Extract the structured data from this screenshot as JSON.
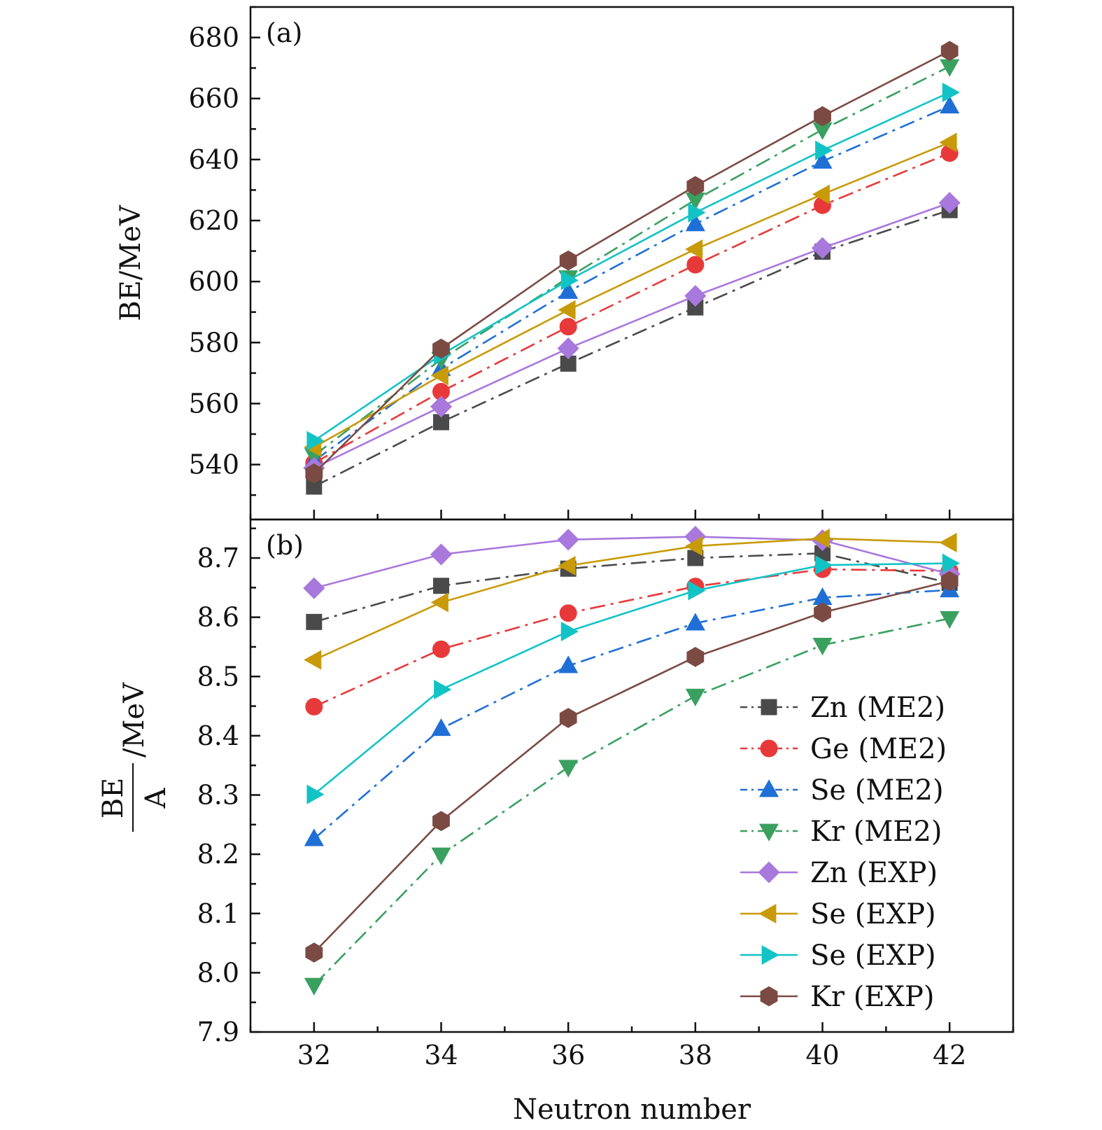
{
  "chart_data": [
    {
      "type": "line",
      "panel_label": "(a)",
      "x": [
        32,
        34,
        36,
        38,
        40,
        42
      ],
      "xlim": [
        31,
        43
      ],
      "xticks": [
        32,
        34,
        36,
        38,
        40,
        42
      ],
      "ylabel": "BE/MeV",
      "ylim": [
        522,
        690
      ],
      "yticks": [
        540,
        560,
        580,
        600,
        620,
        640,
        660,
        680
      ],
      "series": [
        {
          "name": "Zn (ME2)",
          "values": [
            532.8,
            553.9,
            573.1,
            591.5,
            609.8,
            623.4
          ],
          "color": "#4a4a4a",
          "marker": "square",
          "dash": "dashdot"
        },
        {
          "name": "Ge (ME2)",
          "values": [
            540.5,
            563.9,
            585.2,
            605.5,
            625.0,
            642.1
          ],
          "color": "#e8393a",
          "marker": "circle",
          "dash": "dashdot"
        },
        {
          "name": "Se (ME2)",
          "values": [
            541.2,
            571.4,
            596.7,
            618.9,
            639.4,
            657.5
          ],
          "color": "#1f6fd6",
          "marker": "triangle-up",
          "dash": "dashdot"
        },
        {
          "name": "Kr (ME2)",
          "values": [
            543.0,
            574.5,
            601.3,
            626.8,
            649.8,
            670.5
          ],
          "color": "#3aa060",
          "marker": "triangle-down",
          "dash": "dashdot"
        },
        {
          "name": "Zn (EXP)",
          "values": [
            538.9,
            559.0,
            578.1,
            595.3,
            611.0,
            625.8
          ],
          "color": "#a878dc",
          "marker": "diamond",
          "dash": "solid"
        },
        {
          "name": "Se (EXP)",
          "values": [
            545.7,
            569.2,
            590.7,
            610.6,
            628.6,
            645.6
          ],
          "color": "#c89a08",
          "marker": "triangle-left",
          "dash": "solid"
        },
        {
          "name": "Se (EXP)",
          "values": [
            547.8,
            576.0,
            600.4,
            622.6,
            643.0,
            662.0
          ],
          "color": "#12c3c6",
          "marker": "triangle-right",
          "dash": "solid"
        },
        {
          "name": "Kr (EXP)",
          "values": [
            537.1,
            578.0,
            606.9,
            631.3,
            654.2,
            675.6
          ],
          "color": "#7b4b43",
          "marker": "hexagon",
          "dash": "solid"
        }
      ]
    },
    {
      "type": "line",
      "panel_label": "(b)",
      "x": [
        32,
        34,
        36,
        38,
        40,
        42
      ],
      "xlim": [
        31,
        43
      ],
      "xticks": [
        32,
        34,
        36,
        38,
        40,
        42
      ],
      "xlabel": "Neutron number",
      "ylabel_num": "BE",
      "ylabel_den": "A",
      "ylabel_unit": "/MeV",
      "ylim": [
        7.9,
        8.765
      ],
      "yticks": [
        "7.9",
        "8.0",
        "8.1",
        "8.2",
        "8.3",
        "8.4",
        "8.5",
        "8.6",
        "8.7"
      ],
      "legend_position": "lower-right",
      "series": [
        {
          "name": "Zn (ME2)",
          "values": [
            8.592,
            8.653,
            8.682,
            8.7,
            8.708,
            8.658
          ],
          "color": "#4a4a4a",
          "marker": "square",
          "dash": "dashdot"
        },
        {
          "name": "Ge (ME2)",
          "values": [
            8.449,
            8.546,
            8.607,
            8.652,
            8.681,
            8.678
          ],
          "color": "#e8393a",
          "marker": "circle",
          "dash": "dashdot"
        },
        {
          "name": "Se (ME2)",
          "values": [
            8.226,
            8.412,
            8.518,
            8.59,
            8.633,
            8.646
          ],
          "color": "#1f6fd6",
          "marker": "triangle-up",
          "dash": "dashdot"
        },
        {
          "name": "Kr (ME2)",
          "values": [
            7.979,
            8.199,
            8.347,
            8.467,
            8.553,
            8.598
          ],
          "color": "#3aa060",
          "marker": "triangle-down",
          "dash": "dashdot"
        },
        {
          "name": "Zn (EXP)",
          "values": [
            8.649,
            8.706,
            8.731,
            8.736,
            8.73,
            8.673
          ],
          "color": "#a878dc",
          "marker": "diamond",
          "dash": "solid"
        },
        {
          "name": "Se (EXP)",
          "values": [
            8.528,
            8.625,
            8.687,
            8.72,
            8.733,
            8.726
          ],
          "color": "#c89a08",
          "marker": "triangle-left",
          "dash": "solid"
        },
        {
          "name": "Se (EXP)",
          "values": [
            8.301,
            8.478,
            8.576,
            8.645,
            8.688,
            8.691
          ],
          "color": "#12c3c6",
          "marker": "triangle-right",
          "dash": "solid"
        },
        {
          "name": "Kr (EXP)",
          "values": [
            8.034,
            8.256,
            8.43,
            8.533,
            8.608,
            8.661
          ],
          "color": "#7b4b43",
          "marker": "hexagon",
          "dash": "solid"
        }
      ]
    }
  ]
}
